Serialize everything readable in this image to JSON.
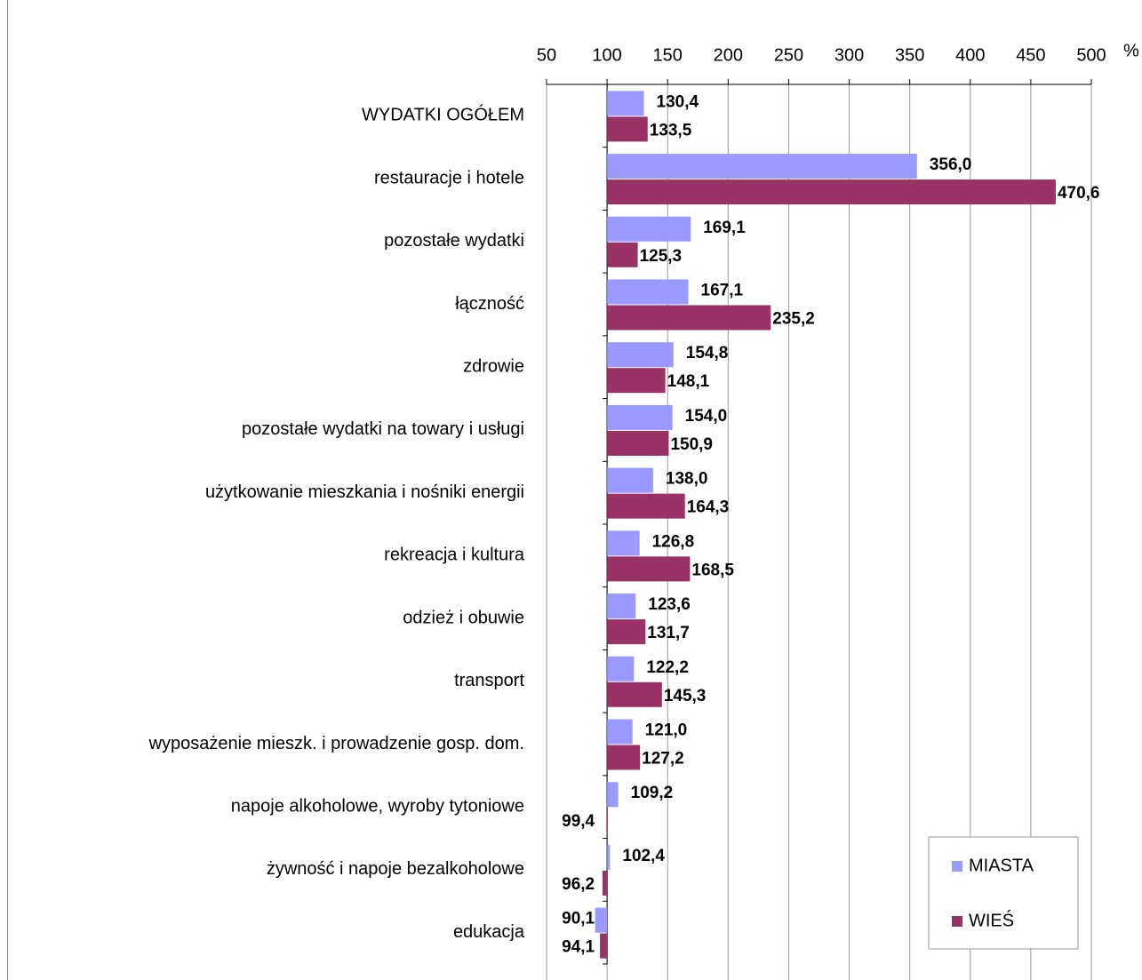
{
  "chart_data": {
    "type": "barh",
    "categories": [
      "WYDATKI OGÓŁEM",
      "restauracje i hotele",
      "pozostałe wydatki",
      "łączność",
      "zdrowie",
      "pozostałe wydatki na towary i usługi",
      "użytkowanie mieszkania i nośniki energii",
      "rekreacja i kultura",
      "odzież i obuwie",
      "transport",
      "wyposażenie mieszk. i prowadzenie gosp. dom.",
      "napoje alkoholowe, wyroby tytoniowe",
      "żywność i napoje bezalkoholowe",
      "edukacja"
    ],
    "series": [
      {
        "name": "MIASTA",
        "color": "#9999ff",
        "values": [
          130.4,
          356.0,
          169.1,
          167.1,
          154.8,
          154.0,
          138.0,
          126.8,
          123.6,
          122.2,
          121.0,
          109.2,
          102.4,
          90.1
        ],
        "value_labels": [
          "130,4",
          "356,0",
          "169,1",
          "167,1",
          "154,8",
          "154,0",
          "138,0",
          "126,8",
          "123,6",
          "122,2",
          "121,0",
          "109,2",
          "102,4",
          "90,1"
        ]
      },
      {
        "name": "WIEŚ",
        "color": "#993366",
        "values": [
          133.5,
          470.6,
          125.3,
          235.2,
          148.1,
          150.9,
          164.3,
          168.5,
          131.7,
          145.3,
          127.2,
          99.4,
          96.2,
          94.1
        ],
        "value_labels": [
          "133,5",
          "470,6",
          "125,3",
          "235,2",
          "148,1",
          "150,9",
          "164,3",
          "168,5",
          "131,7",
          "145,3",
          "127,2",
          "99,4",
          "96,2",
          "94,1"
        ]
      }
    ],
    "xlim": [
      50,
      500
    ],
    "xticks": [
      50,
      100,
      150,
      200,
      250,
      300,
      350,
      400,
      450,
      500
    ],
    "x_unit": "%",
    "baseline": 100,
    "grid": true,
    "legend": "bottom-right"
  }
}
